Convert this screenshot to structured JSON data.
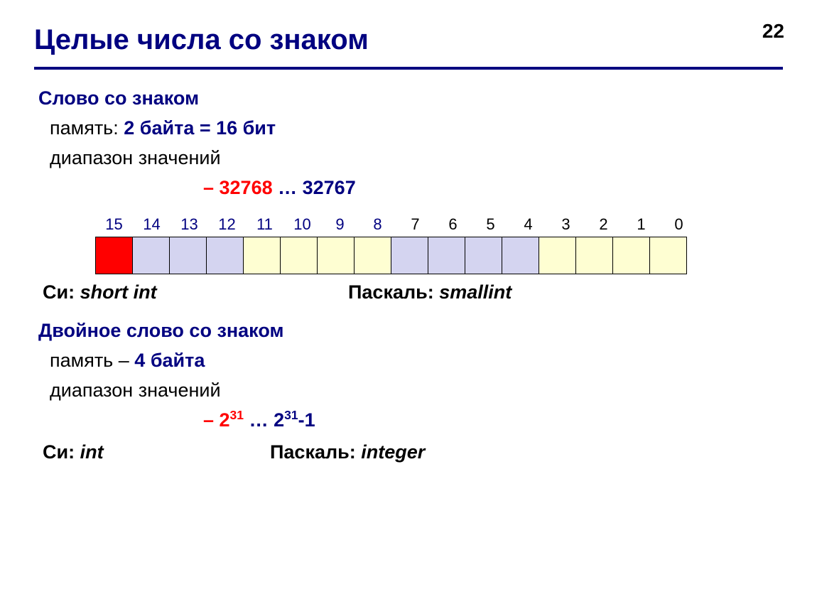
{
  "page_number": "22",
  "title": "Целые числа со знаком",
  "section1": {
    "heading": "Слово со  знаком",
    "mem_label": "память:",
    "mem_value": "2 байта = 16 бит",
    "range_label": "диапазон значений",
    "range_min": "– 32768",
    "range_dots": " … ",
    "range_max": "32767",
    "lang_c_label": "Си:",
    "lang_c_type": "short int",
    "lang_p_label": "Паскаль:",
    "lang_p_type": "smallint"
  },
  "diagram": {
    "bits": [
      {
        "n": "15",
        "lc": "blue",
        "cc": "c-red"
      },
      {
        "n": "14",
        "lc": "blue",
        "cc": "c-blue"
      },
      {
        "n": "13",
        "lc": "blue",
        "cc": "c-blue"
      },
      {
        "n": "12",
        "lc": "blue",
        "cc": "c-blue"
      },
      {
        "n": "11",
        "lc": "blue",
        "cc": "c-yel"
      },
      {
        "n": "10",
        "lc": "blue",
        "cc": "c-yel"
      },
      {
        "n": "9",
        "lc": "blue",
        "cc": "c-yel"
      },
      {
        "n": "8",
        "lc": "blue",
        "cc": "c-yel"
      },
      {
        "n": "7",
        "lc": "black",
        "cc": "c-blue"
      },
      {
        "n": "6",
        "lc": "black",
        "cc": "c-blue"
      },
      {
        "n": "5",
        "lc": "black",
        "cc": "c-blue"
      },
      {
        "n": "4",
        "lc": "black",
        "cc": "c-blue"
      },
      {
        "n": "3",
        "lc": "black",
        "cc": "c-yel"
      },
      {
        "n": "2",
        "lc": "black",
        "cc": "c-yel"
      },
      {
        "n": "1",
        "lc": "black",
        "cc": "c-yel"
      },
      {
        "n": "0",
        "lc": "black",
        "cc": "c-yel"
      }
    ]
  },
  "section2": {
    "heading": "Двойное слово со знаком",
    "mem_label": "память –",
    "mem_value": "4 байта",
    "range_label": "диапазон значений",
    "range_min_base": "– 2",
    "range_min_exp": "31",
    "range_dots": " … ",
    "range_max_base": "2",
    "range_max_exp": "31",
    "range_max_suffix": "-1",
    "lang_c_label": "Си:",
    "lang_c_type": "int",
    "lang_p_label": "Паскаль:",
    "lang_p_type": "integer"
  },
  "colors": {
    "title": "#000080",
    "rule": "#000080",
    "red": "#ff0000",
    "cell_red": "#ff0000",
    "cell_blue": "#d4d4f0",
    "cell_yellow": "#fefed2",
    "cell_border": "#000000"
  }
}
